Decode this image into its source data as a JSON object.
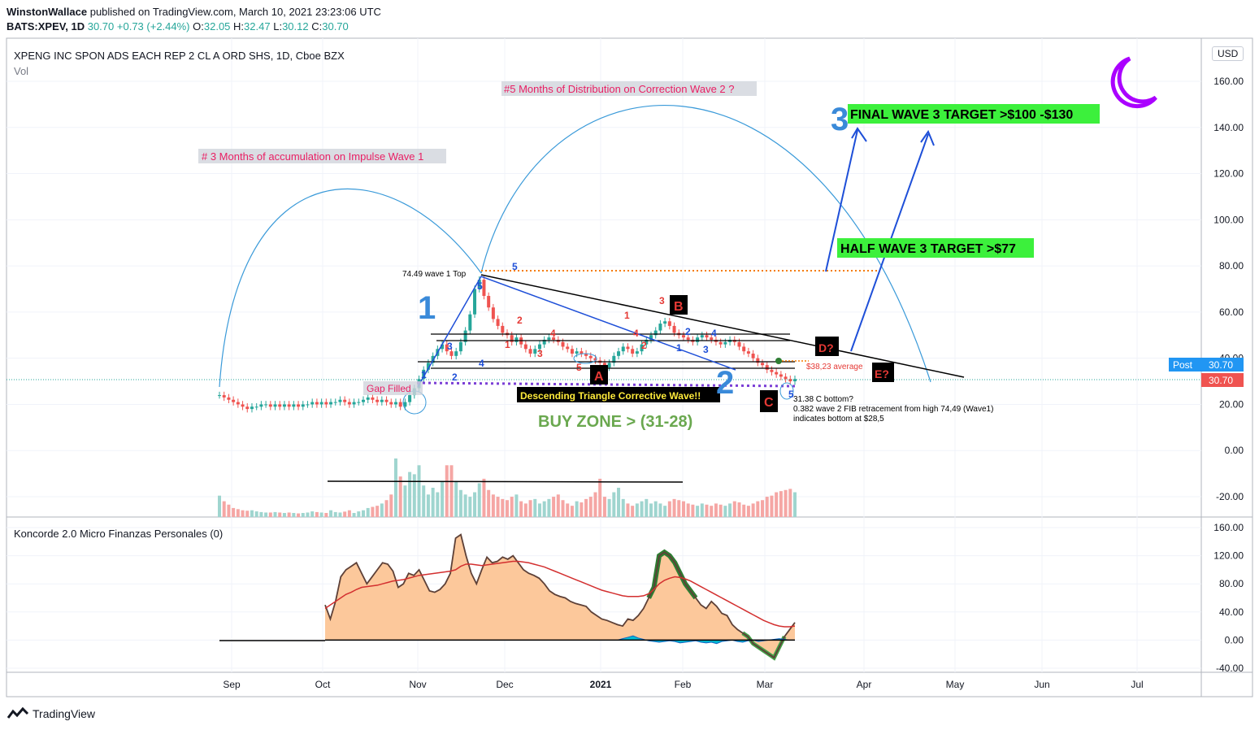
{
  "header": {
    "author": "WinstonWallace",
    "published": "published on TradingView.com, March 10, 2021 23:23:06 UTC",
    "symbol": "BATS:XPEV, 1D",
    "last": "30.70",
    "change": "+0.73 (+2.44%)",
    "o_label": "O:",
    "o": "32.05",
    "h_label": "H:",
    "h": "32.47",
    "l_label": "L:",
    "l": "30.12",
    "c_label": "C:",
    "c": "30.70"
  },
  "legend": {
    "title": "XPENG INC SPON ADS EACH REP 2 CL A ORD SHS, 1D, Cboe BZX",
    "vol": "Vol",
    "indicator": "Koncorde 2.0 Micro Finanzas Personales (0)"
  },
  "currency": "USD",
  "footer": {
    "brand": "TradingView"
  },
  "colors": {
    "up": "#26a69a",
    "down": "#ef5350",
    "accent": "#2962ff",
    "green_box": "#3cf03c",
    "arc": "#3a9ad9",
    "wave_blue": "#1e4fd8",
    "koncorde_fill": "#fcc89b"
  },
  "annotations": {
    "accumulation": "# 3 Months of accumulation on Impulse Wave 1",
    "distribution": "#5 Months of Distribution on Correction Wave 2 ?",
    "final_target": "FINAL WAVE 3 TARGET  >$100 -$130",
    "half_target": "HALF WAVE 3 TARGET  >$77",
    "wave1_top": "74.49 wave 1 Top",
    "gap_filled": "Gap Filled",
    "triangle": "Descending Triangle Corrective Wave!!",
    "buy_zone": "BUY ZONE > (31-28)",
    "average": "$38,23 average",
    "c_bottom_1": "31.38 C bottom?",
    "c_bottom_2": "0.382 wave 2 FIB retracement from high 74,49 (Wave1)",
    "c_bottom_3": "indicates bottom at $28,5",
    "wave_big_1": "1",
    "wave_big_2": "2",
    "wave_big_3": "3",
    "box_A": "A",
    "box_B": "B",
    "box_C": "C",
    "box_D": "D?",
    "box_E": "E?",
    "post_label": "Post",
    "post_price": "30.70",
    "price_tag": "30.70",
    "small_labels": [
      "1",
      "2",
      "3",
      "4",
      "5",
      "1",
      "2",
      "3",
      "4",
      "5",
      "1",
      "2",
      "3",
      "4",
      "5",
      "1",
      "2",
      "3",
      "4",
      "5"
    ]
  },
  "chart_data": [
    {
      "type": "candlestick",
      "title": "XPENG INC SPON ADS EACH REP 2 CL A ORD SHS, 1D, Cboe BZX",
      "x_ticks": [
        "Sep",
        "Oct",
        "Nov",
        "Dec",
        "2021",
        "Feb",
        "Mar",
        "Apr",
        "May",
        "Jun",
        "Jul"
      ],
      "y_ticks": [
        "160.00",
        "140.00",
        "120.00",
        "100.00",
        "80.00",
        "60.00",
        "40.00",
        "20.00",
        "0.00",
        "-20.00"
      ],
      "ylim": [
        -25,
        165
      ],
      "close_series": [
        24,
        23,
        22,
        21,
        20,
        19,
        18,
        19,
        19,
        20,
        20,
        19,
        20,
        19,
        20,
        19,
        20,
        19,
        20,
        20,
        21,
        20,
        21,
        20,
        21,
        21,
        22,
        21,
        20,
        21,
        21,
        22,
        23,
        22,
        21,
        22,
        21,
        20,
        21,
        19,
        21,
        24,
        27,
        31,
        35,
        38,
        41,
        44,
        46,
        43,
        41,
        43,
        47,
        52,
        59,
        70,
        74,
        67,
        62,
        57,
        54,
        51,
        50,
        47,
        49,
        46,
        44,
        42,
        44,
        46,
        48,
        49,
        48,
        47,
        45,
        44,
        42,
        43,
        42,
        41,
        40,
        39,
        38,
        36,
        38,
        41,
        43,
        45,
        44,
        42,
        43,
        46,
        48,
        50,
        52,
        55,
        56,
        54,
        51,
        50,
        49,
        48,
        47,
        49,
        50,
        49,
        48,
        47,
        46,
        47,
        48,
        47,
        45,
        43,
        42,
        40,
        38,
        37,
        35,
        34,
        33,
        32,
        31,
        30,
        31
      ],
      "volume_pct": [
        95,
        70,
        55,
        40,
        35,
        30,
        28,
        30,
        25,
        22,
        20,
        20,
        22,
        20,
        18,
        20,
        18,
        16,
        18,
        20,
        25,
        22,
        20,
        18,
        30,
        22,
        20,
        24,
        30,
        18,
        25,
        30,
        40,
        45,
        50,
        60,
        75,
        100,
        260,
        180,
        140,
        200,
        190,
        230,
        140,
        100,
        130,
        110,
        160,
        230,
        230,
        160,
        120,
        100,
        90,
        110,
        150,
        170,
        120,
        100,
        90,
        80,
        75,
        90,
        100,
        70,
        60,
        75,
        80,
        60,
        70,
        80,
        90,
        100,
        75,
        60,
        50,
        70,
        65,
        80,
        90,
        110,
        170,
        90,
        80,
        110,
        130,
        80,
        60,
        50,
        60,
        70,
        80,
        60,
        70,
        60,
        50,
        70,
        80,
        75,
        70,
        60,
        55,
        50,
        60,
        55,
        50,
        60,
        55,
        50,
        60,
        70,
        65,
        55,
        50,
        60,
        70,
        75,
        90,
        95,
        110,
        115,
        120,
        125,
        110
      ]
    },
    {
      "type": "area",
      "title": "Koncorde 2.0 Micro Finanzas Personales (0)",
      "y_ticks": [
        "160.00",
        "120.00",
        "80.00",
        "40.00",
        "0.00",
        "-40.00"
      ],
      "ylim": [
        -42,
        162
      ],
      "main": [
        50,
        30,
        55,
        90,
        100,
        105,
        110,
        95,
        80,
        90,
        100,
        110,
        108,
        98,
        75,
        80,
        95,
        92,
        100,
        85,
        70,
        68,
        72,
        80,
        95,
        145,
        150,
        120,
        95,
        80,
        100,
        118,
        110,
        112,
        118,
        115,
        120,
        110,
        100,
        95,
        92,
        88,
        80,
        70,
        65,
        62,
        60,
        55,
        52,
        50,
        48,
        40,
        35,
        30,
        28,
        25,
        22,
        20,
        30,
        28,
        35,
        45,
        60,
        75,
        120,
        125,
        120,
        110,
        95,
        80,
        70,
        60,
        50,
        45,
        55,
        48,
        38,
        35,
        22,
        15,
        10,
        5,
        -5,
        -10,
        -15,
        -20,
        -25,
        -10,
        5,
        15,
        25
      ],
      "ma": [
        45,
        50,
        55,
        60,
        65,
        68,
        72,
        75,
        76,
        77,
        78,
        80,
        82,
        84,
        85,
        86,
        88,
        90,
        92,
        93,
        94,
        95,
        96,
        97,
        98,
        100,
        105,
        108,
        108,
        107,
        106,
        107,
        108,
        109,
        110,
        111,
        112,
        112,
        111,
        110,
        108,
        106,
        104,
        101,
        98,
        95,
        92,
        89,
        86,
        83,
        80,
        77,
        74,
        71,
        69,
        67,
        65,
        63,
        62,
        62,
        62,
        63,
        66,
        72,
        80,
        85,
        88,
        90,
        89,
        87,
        84,
        80,
        76,
        72,
        68,
        64,
        60,
        56,
        52,
        48,
        44,
        40,
        36,
        32,
        28,
        25,
        22,
        20,
        19,
        19,
        20
      ],
      "blue": [
        0,
        0,
        0,
        0,
        0,
        0,
        0,
        0,
        0,
        0,
        0,
        0,
        0,
        0,
        0,
        0,
        0,
        0,
        0,
        0,
        0,
        0,
        0,
        0,
        0,
        0,
        0,
        0,
        0,
        0,
        0,
        0,
        0,
        0,
        0,
        0,
        0,
        0,
        0,
        0,
        0,
        0,
        0,
        0,
        0,
        0,
        0,
        0,
        0,
        0,
        0,
        0,
        0,
        0,
        0,
        0,
        0,
        2,
        4,
        6,
        3,
        1,
        -1,
        -2,
        -3,
        -2,
        -1,
        -2,
        -4,
        -3,
        -2,
        -1,
        -3,
        -4,
        -3,
        -5,
        -2,
        -1,
        0,
        -2,
        -3,
        -1,
        0,
        -2,
        -1,
        0,
        1,
        2,
        1,
        0,
        0
      ]
    }
  ]
}
